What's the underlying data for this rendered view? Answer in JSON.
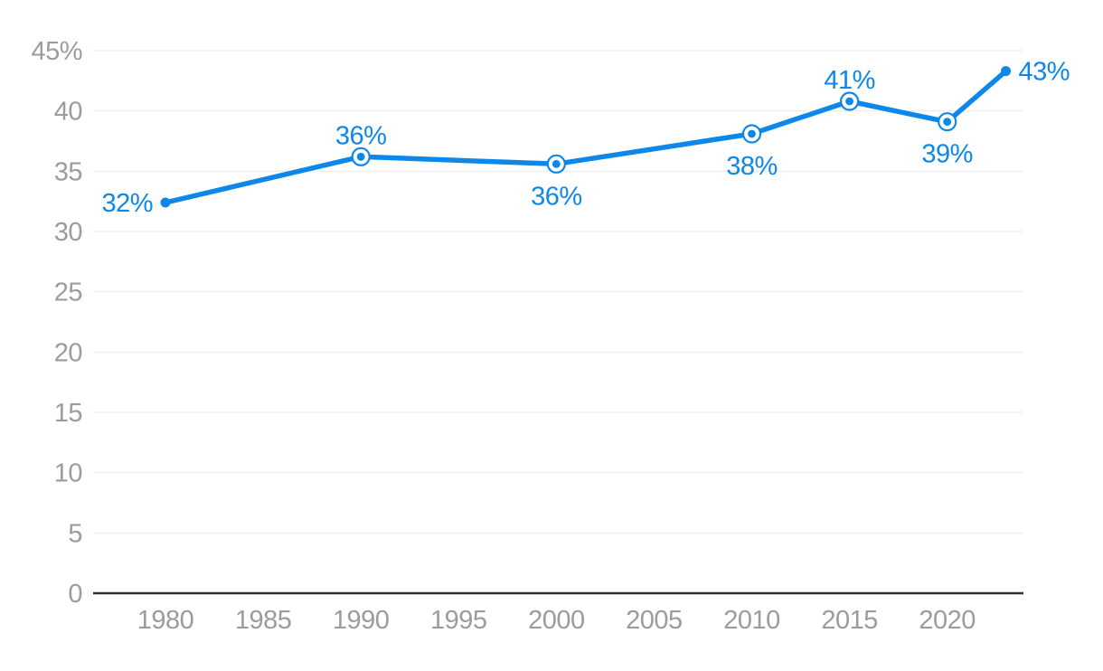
{
  "chart_data": {
    "type": "line",
    "series": [
      {
        "name": "percentage-share",
        "points": [
          {
            "year": 1980,
            "value": 32,
            "label": "32%",
            "plot_value": 32.4,
            "label_position": "left",
            "marker": "dot"
          },
          {
            "year": 1990,
            "value": 36,
            "label": "36%",
            "plot_value": 36.2,
            "label_position": "above",
            "marker": "ring"
          },
          {
            "year": 2000,
            "value": 36,
            "label": "36%",
            "plot_value": 35.6,
            "label_position": "below",
            "marker": "ring"
          },
          {
            "year": 2010,
            "value": 38,
            "label": "38%",
            "plot_value": 38.1,
            "label_position": "below",
            "marker": "ring"
          },
          {
            "year": 2015,
            "value": 41,
            "label": "41%",
            "plot_value": 40.8,
            "label_position": "above",
            "marker": "ring"
          },
          {
            "year": 2020,
            "value": 39,
            "label": "39%",
            "plot_value": 39.1,
            "label_position": "below",
            "marker": "ring"
          },
          {
            "year": 2023,
            "value": 43,
            "label": "43%",
            "plot_value": 43.3,
            "label_position": "right",
            "marker": "dot"
          }
        ]
      }
    ],
    "x_ticks": [
      1980,
      1985,
      1990,
      1995,
      2000,
      2005,
      2010,
      2015,
      2020
    ],
    "y_ticks": [
      0,
      5,
      10,
      15,
      20,
      25,
      30,
      35,
      40,
      45
    ],
    "y_tick_labels": [
      "0",
      "5",
      "10",
      "15",
      "20",
      "25",
      "30",
      "35",
      "40",
      "45%"
    ],
    "x_domain": [
      1976.3,
      2023.9
    ],
    "y_domain": [
      0,
      45
    ],
    "grid": "horizontal",
    "legend": "none",
    "colors": {
      "line": "#0d88e8",
      "marker_fill": "#0d88e8",
      "ring_fill": "#ffffff",
      "data_label": "#0d88e8",
      "tick_label": "#9c9c9c",
      "gridline": "#eaeaea",
      "axis_line": "#2e2e2e",
      "background": "#ffffff"
    }
  }
}
